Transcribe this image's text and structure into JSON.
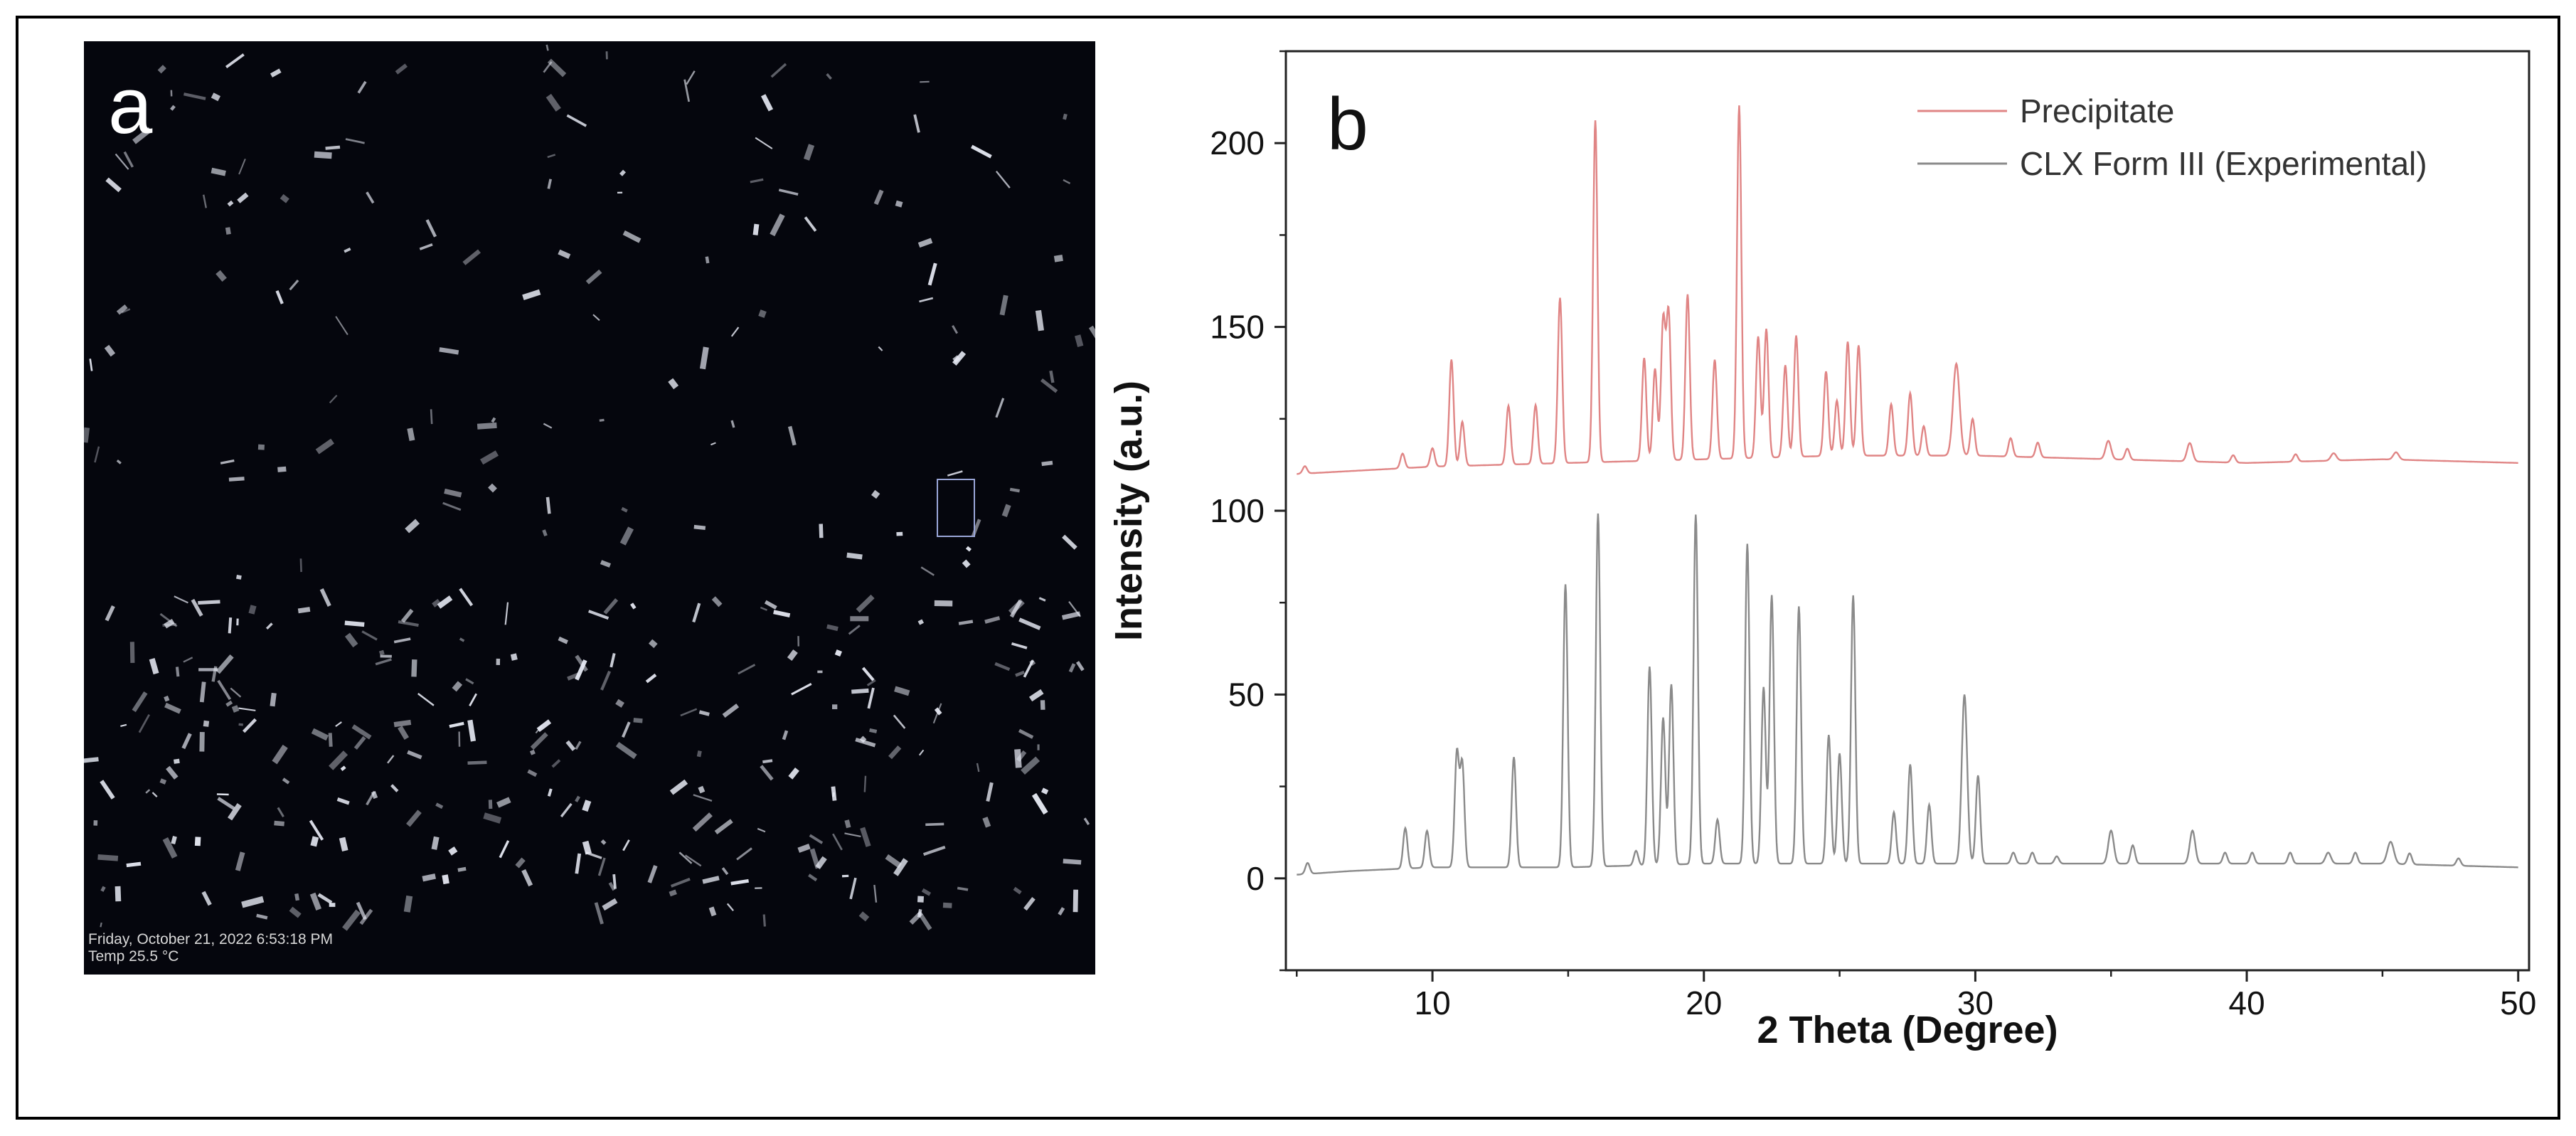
{
  "panel_a": {
    "label": "a",
    "timestamp": "Friday, October 21, 2022 6:53:18 PM",
    "temperature": "Temp 25.5 °C",
    "background_color": "#05060d",
    "crystal_color": "#e9ecf6"
  },
  "chart_data": {
    "type": "line",
    "panel_label": "b",
    "title": "",
    "xlabel": "2 Theta (Degree)",
    "ylabel": "Intensity (a.u.)",
    "xlim": [
      4.6,
      50.4
    ],
    "ylim": [
      -25,
      225
    ],
    "xticks": [
      10,
      20,
      30,
      40,
      50
    ],
    "yticks": [
      0,
      50,
      100,
      150,
      200
    ],
    "grid": false,
    "legend_position": "top-right",
    "series": [
      {
        "name": "Precipitate",
        "color": "#e08585",
        "baseline": [
          [
            5.0,
            110
          ],
          [
            10.0,
            112
          ],
          [
            15.0,
            113
          ],
          [
            20.0,
            114
          ],
          [
            25.0,
            115
          ],
          [
            30.0,
            115
          ],
          [
            35.0,
            114
          ],
          [
            40.0,
            113
          ],
          [
            45.0,
            114
          ],
          [
            50.0,
            113
          ]
        ],
        "peaks": [
          [
            5.3,
            2,
            0.08
          ],
          [
            8.9,
            4,
            0.08
          ],
          [
            10.0,
            5,
            0.08
          ],
          [
            10.7,
            29,
            0.08
          ],
          [
            11.1,
            12,
            0.08
          ],
          [
            12.8,
            16,
            0.08
          ],
          [
            13.8,
            16,
            0.08
          ],
          [
            14.7,
            45,
            0.08
          ],
          [
            16.0,
            93,
            0.08
          ],
          [
            17.8,
            28,
            0.08
          ],
          [
            18.2,
            25,
            0.08
          ],
          [
            18.5,
            38,
            0.08
          ],
          [
            18.7,
            40,
            0.08
          ],
          [
            19.4,
            45,
            0.08
          ],
          [
            20.4,
            27,
            0.08
          ],
          [
            21.3,
            96,
            0.08
          ],
          [
            22.0,
            33,
            0.08
          ],
          [
            22.3,
            35,
            0.08
          ],
          [
            23.0,
            25,
            0.08
          ],
          [
            23.4,
            33,
            0.08
          ],
          [
            24.5,
            23,
            0.08
          ],
          [
            24.9,
            15,
            0.08
          ],
          [
            25.3,
            31,
            0.08
          ],
          [
            25.7,
            30,
            0.08
          ],
          [
            26.9,
            14,
            0.08
          ],
          [
            27.6,
            17,
            0.08
          ],
          [
            28.1,
            8,
            0.08
          ],
          [
            29.3,
            25,
            0.12
          ],
          [
            29.9,
            10,
            0.08
          ],
          [
            31.3,
            5,
            0.08
          ],
          [
            32.3,
            4,
            0.08
          ],
          [
            34.9,
            5,
            0.1
          ],
          [
            35.6,
            3,
            0.08
          ],
          [
            37.9,
            5,
            0.1
          ],
          [
            39.5,
            2,
            0.08
          ],
          [
            41.8,
            2,
            0.08
          ],
          [
            43.2,
            2,
            0.1
          ],
          [
            45.5,
            2,
            0.1
          ]
        ]
      },
      {
        "name": "CLX Form III (Experimental)",
        "color": "#8a8a8a",
        "baseline": [
          [
            5.0,
            1
          ],
          [
            7.0,
            2
          ],
          [
            10.0,
            3
          ],
          [
            15.0,
            3
          ],
          [
            20.0,
            4
          ],
          [
            25.0,
            4
          ],
          [
            30.0,
            4
          ],
          [
            35.0,
            4
          ],
          [
            40.0,
            4
          ],
          [
            45.0,
            4
          ],
          [
            50.0,
            3
          ]
        ],
        "peaks": [
          [
            5.4,
            3,
            0.08
          ],
          [
            9.0,
            11,
            0.08
          ],
          [
            9.8,
            10,
            0.08
          ],
          [
            10.9,
            31,
            0.08
          ],
          [
            11.1,
            28,
            0.08
          ],
          [
            13.0,
            30,
            0.08
          ],
          [
            14.9,
            77,
            0.08
          ],
          [
            16.1,
            96,
            0.08
          ],
          [
            17.5,
            4,
            0.08
          ],
          [
            18.0,
            54,
            0.08
          ],
          [
            18.5,
            40,
            0.08
          ],
          [
            18.8,
            49,
            0.08
          ],
          [
            19.7,
            95,
            0.08
          ],
          [
            20.5,
            12,
            0.08
          ],
          [
            21.6,
            87,
            0.08
          ],
          [
            22.2,
            48,
            0.08
          ],
          [
            22.5,
            73,
            0.08
          ],
          [
            23.5,
            70,
            0.08
          ],
          [
            24.6,
            35,
            0.08
          ],
          [
            25.0,
            30,
            0.08
          ],
          [
            25.5,
            73,
            0.08
          ],
          [
            27.0,
            14,
            0.08
          ],
          [
            27.6,
            27,
            0.08
          ],
          [
            28.3,
            16,
            0.08
          ],
          [
            29.6,
            46,
            0.1
          ],
          [
            30.1,
            24,
            0.08
          ],
          [
            31.4,
            3,
            0.08
          ],
          [
            32.1,
            3,
            0.08
          ],
          [
            33.0,
            2,
            0.08
          ],
          [
            35.0,
            9,
            0.1
          ],
          [
            35.8,
            5,
            0.08
          ],
          [
            38.0,
            9,
            0.1
          ],
          [
            39.2,
            3,
            0.08
          ],
          [
            40.2,
            3,
            0.08
          ],
          [
            41.6,
            3,
            0.08
          ],
          [
            43.0,
            3,
            0.1
          ],
          [
            44.0,
            3,
            0.08
          ],
          [
            45.3,
            6,
            0.12
          ],
          [
            46.0,
            3,
            0.08
          ],
          [
            47.8,
            2,
            0.08
          ]
        ]
      }
    ]
  }
}
